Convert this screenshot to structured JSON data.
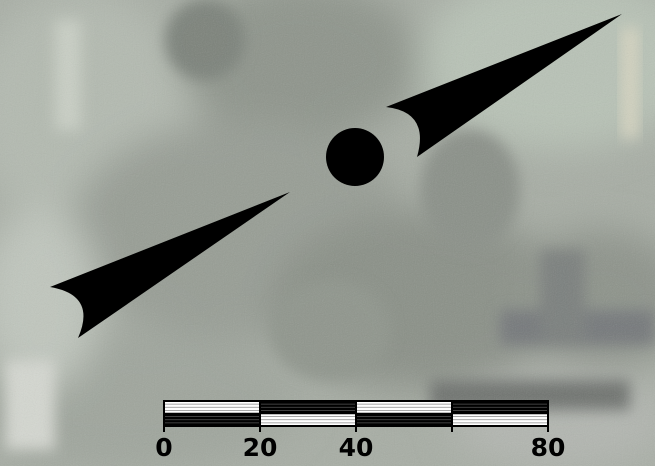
{
  "colors": {
    "imagery_base": "#a7ada4",
    "foliage_dark": "#7f857d",
    "foliage_mid": "#959b92",
    "sky_light": "#b8c2b6",
    "ground_light": "#c9ccc6",
    "symbol": "#000000",
    "scale_light": "#ffffff"
  },
  "map": {
    "layers": [
      "aerial-imagery",
      "north-arrow",
      "scale-bar"
    ],
    "north_arrow": {
      "style": "split-spear-with-center-dot"
    },
    "scale_bar": {
      "ticks": [
        {
          "label": "0",
          "value": 0
        },
        {
          "label": "20",
          "value": 20
        },
        {
          "label": "40",
          "value": 40
        },
        {
          "label": "80",
          "value": 80
        }
      ],
      "segment_values": [
        0,
        20,
        40,
        60,
        80
      ]
    }
  }
}
